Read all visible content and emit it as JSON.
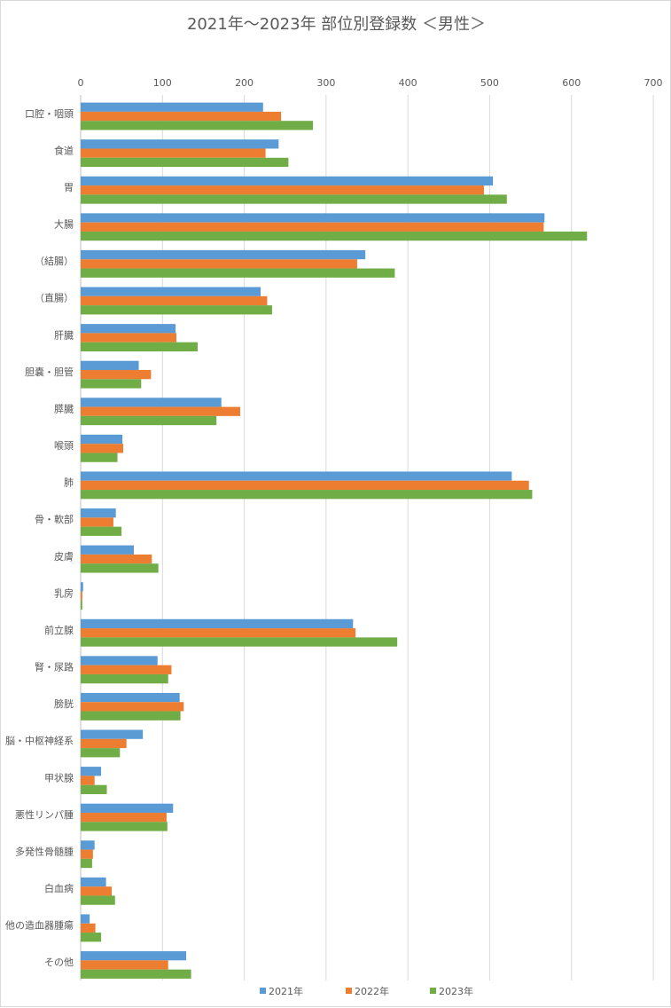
{
  "chart_data": {
    "type": "bar",
    "orientation": "horizontal",
    "title": "2021年～2023年 部位別登録数 ＜男性＞",
    "xlim": [
      0,
      700
    ],
    "x_ticks": [
      0,
      100,
      200,
      300,
      400,
      500,
      600,
      700
    ],
    "x_axis_position": "top",
    "grid": true,
    "legend_position": "bottom",
    "categories": [
      "口腔・咽頭",
      "食道",
      "胃",
      "大腸",
      "（結腸）",
      "（直腸）",
      "肝臓",
      "胆嚢・胆管",
      "膵臓",
      "喉頭",
      "肺",
      "骨・軟部",
      "皮膚",
      "乳房",
      "前立腺",
      "腎・尿路",
      "膀胱",
      "脳・中枢神経系",
      "甲状腺",
      "悪性リンパ腫",
      "多発性骨髄腫",
      "白血病",
      "他の造血器腫瘍",
      "その他"
    ],
    "series": [
      {
        "name": "2021年",
        "color": "#5b9bd5",
        "values": [
          223,
          242,
          504,
          567,
          348,
          220,
          116,
          71,
          172,
          51,
          527,
          43,
          65,
          3,
          333,
          94,
          121,
          76,
          25,
          113,
          17,
          31,
          11,
          129
        ]
      },
      {
        "name": "2022年",
        "color": "#ed7d31",
        "values": [
          245,
          226,
          493,
          566,
          338,
          228,
          117,
          86,
          195,
          52,
          548,
          40,
          87,
          2,
          336,
          111,
          126,
          56,
          17,
          105,
          15,
          38,
          18,
          107
        ]
      },
      {
        "name": "2023年",
        "color": "#70ad47",
        "values": [
          284,
          254,
          521,
          619,
          384,
          234,
          143,
          74,
          166,
          45,
          552,
          50,
          95,
          2,
          387,
          107,
          122,
          48,
          32,
          106,
          14,
          42,
          25,
          135
        ]
      }
    ]
  }
}
